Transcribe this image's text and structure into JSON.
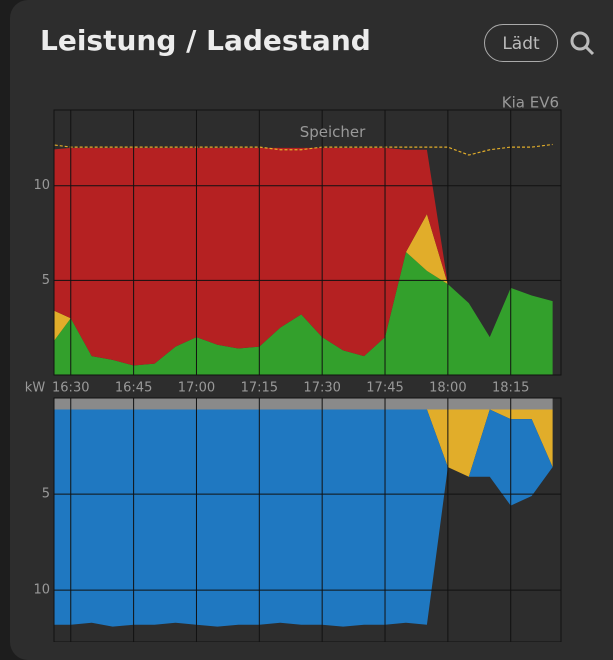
{
  "header": {
    "title": "Leistung / Ladestand",
    "button": "Lädt"
  },
  "chart_data": [
    {
      "type": "area",
      "label": "Kia EV6",
      "ylabel": "kW",
      "x": [
        "16:25",
        "16:30",
        "16:35",
        "16:40",
        "16:45",
        "16:50",
        "16:55",
        "17:00",
        "17:05",
        "17:10",
        "17:15",
        "17:20",
        "17:25",
        "17:30",
        "17:35",
        "17:40",
        "17:45",
        "17:50",
        "17:55",
        "18:00",
        "18:05",
        "18:10",
        "18:15",
        "18:20",
        "18:25"
      ],
      "xlim": [
        "16:26",
        "18:27"
      ],
      "xticks": [
        "16:30",
        "16:45",
        "17:00",
        "17:15",
        "17:30",
        "17:45",
        "18:00",
        "18:15"
      ],
      "ylim": [
        0,
        14
      ],
      "yticks": [
        5,
        10
      ],
      "y2lim": [
        0,
        100
      ],
      "grid": true,
      "series": [
        {
          "color": "#33a02c",
          "values": [
            1.5,
            3.0,
            1.0,
            0.8,
            0.5,
            0.6,
            1.5,
            2.0,
            1.6,
            1.4,
            1.5,
            2.5,
            3.2,
            2.0,
            1.3,
            1.0,
            2.0,
            6.5,
            5.5,
            4.8,
            3.8,
            2.0,
            4.6,
            4.2,
            3.9
          ]
        },
        {
          "color": "#e1ad2a",
          "values": [
            2.0,
            0,
            0,
            0,
            0,
            0,
            0,
            0,
            0,
            0,
            0,
            0,
            0,
            0,
            0,
            0,
            0,
            0,
            3.0,
            0,
            0,
            0,
            0,
            0,
            0
          ]
        },
        {
          "color": "#b52122",
          "values": [
            8.4,
            9.0,
            11.0,
            11.2,
            11.5,
            11.4,
            10.5,
            10.0,
            10.4,
            10.6,
            10.5,
            9.5,
            8.8,
            10.0,
            10.7,
            11.0,
            10.0,
            5.4,
            3.4,
            0,
            0,
            0,
            0,
            0,
            0
          ]
        },
        {
          "name": "Speicher",
          "axis": "y2",
          "color": "#e1ad2a",
          "values": [
            87,
            86,
            86,
            86,
            86,
            86,
            86,
            86,
            86,
            86,
            86,
            85,
            85,
            86,
            86,
            86,
            86,
            86,
            86,
            86,
            83,
            85,
            86,
            86,
            87
          ]
        }
      ]
    },
    {
      "type": "area",
      "inverted": true,
      "x": [
        "16:25",
        "16:30",
        "16:35",
        "16:40",
        "16:45",
        "16:50",
        "16:55",
        "17:00",
        "17:05",
        "17:10",
        "17:15",
        "17:20",
        "17:25",
        "17:30",
        "17:35",
        "17:40",
        "17:45",
        "17:50",
        "17:55",
        "18:00",
        "18:05",
        "18:10",
        "18:15",
        "18:20",
        "18:25"
      ],
      "xlim": [
        "16:26",
        "18:27"
      ],
      "xticks": [
        "16:30",
        "16:45",
        "17:00",
        "17:15",
        "17:30",
        "17:45",
        "18:00",
        "18:15"
      ],
      "ylim": [
        0,
        12.7
      ],
      "yticks": [
        5,
        10
      ],
      "grid": true,
      "series": [
        {
          "color": "#8a8a8a",
          "values": [
            0.6,
            0.6,
            0.6,
            0.6,
            0.6,
            0.6,
            0.6,
            0.6,
            0.6,
            0.6,
            0.6,
            0.6,
            0.6,
            0.6,
            0.6,
            0.6,
            0.6,
            0.6,
            0.6,
            0.6,
            0.6,
            0.6,
            0.6,
            0.6,
            0.6
          ]
        },
        {
          "color": "#e1ad2a",
          "values": [
            0,
            0,
            0,
            0,
            0,
            0,
            0,
            0,
            0,
            0,
            0,
            0,
            0,
            0,
            0,
            0,
            0,
            0,
            0,
            3.0,
            3.5,
            0,
            0.5,
            0.5,
            3.0
          ]
        },
        {
          "color": "#1f78c1",
          "values": [
            11.2,
            11.2,
            11.1,
            11.3,
            11.2,
            11.2,
            11.1,
            11.2,
            11.3,
            11.2,
            11.2,
            11.1,
            11.2,
            11.2,
            11.3,
            11.2,
            11.2,
            11.1,
            11.2,
            0,
            0,
            3.5,
            4.5,
            4.0,
            0
          ]
        }
      ]
    }
  ]
}
